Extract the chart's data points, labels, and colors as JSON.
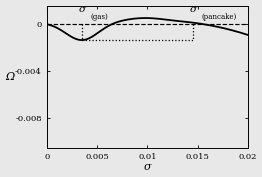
{
  "xlabel": "σ",
  "ylabel": "Ω",
  "xlim": [
    0,
    0.02
  ],
  "ylim": [
    -0.0105,
    0.0015
  ],
  "yticks": [
    0,
    -0.004,
    -0.008
  ],
  "ytick_labels": [
    "0",
    "-0.004",
    "-0.008"
  ],
  "xticks": [
    0,
    0.005,
    0.01,
    0.015,
    0.02
  ],
  "xtick_labels": [
    "0",
    "0.005",
    "0.01",
    "0.015",
    "0.02"
  ],
  "sigma_gas": 0.0035,
  "sigma_pancake": 0.0145,
  "omega_min": -0.00135,
  "background_color": "#e8e8e8",
  "line_color": "#000000",
  "dashed_color": "#000000",
  "dotted_color": "#000000",
  "label_gas_main": "σ",
  "label_gas_sub": "(gas)",
  "label_pancake_main": "σ",
  "label_pancake_sub": "(pancake)"
}
